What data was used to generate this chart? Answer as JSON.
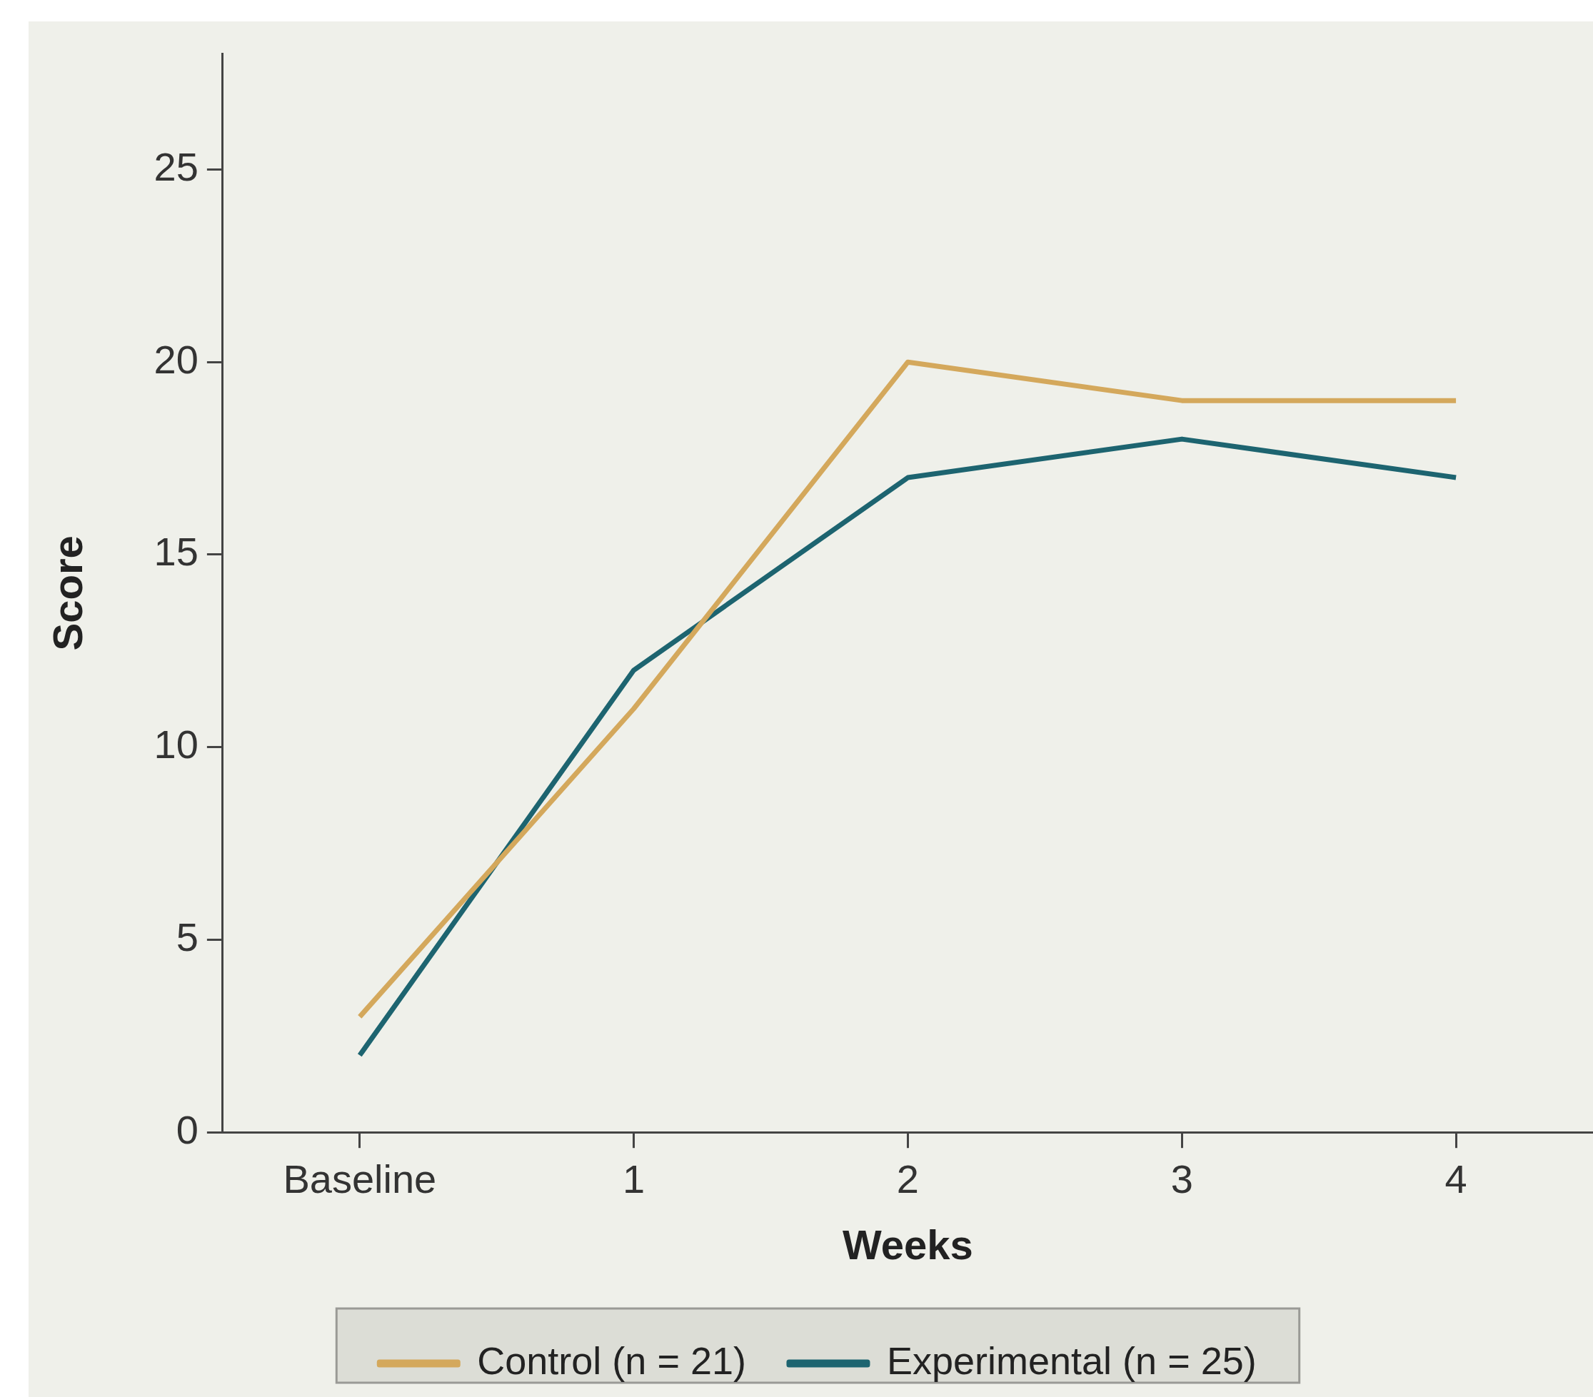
{
  "chart_data": {
    "type": "line",
    "xlabel": "Weeks",
    "ylabel": "Score",
    "categories": [
      "Baseline",
      "1",
      "2",
      "3",
      "4"
    ],
    "series": [
      {
        "name": "Control (n = 21)",
        "color": "#d4a85c",
        "values": [
          3,
          11,
          20,
          19,
          19
        ]
      },
      {
        "name": "Experimental (n = 25)",
        "color": "#1d6470",
        "values": [
          2,
          12,
          17,
          18,
          17
        ]
      }
    ],
    "ylim": [
      0,
      28
    ],
    "yticks": [
      0,
      5,
      10,
      15,
      20,
      25
    ],
    "legend": "bottom",
    "marker": "none",
    "line_style": "solid"
  }
}
